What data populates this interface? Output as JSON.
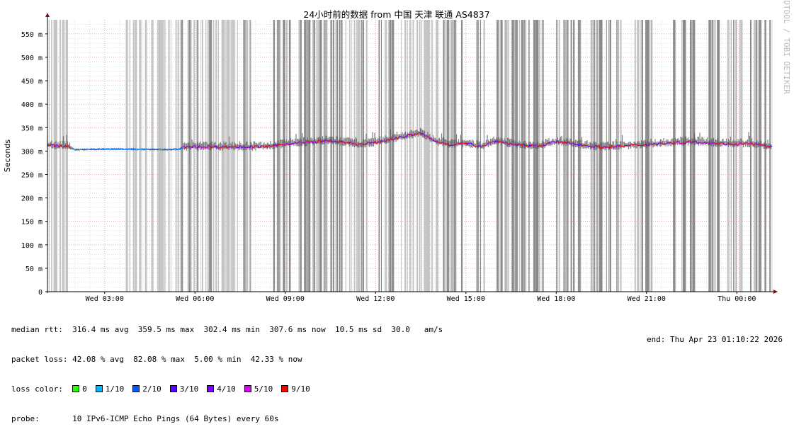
{
  "chart_data": {
    "type": "line",
    "title": "24小时前的数据 from 中国 天津 联通 AS4837",
    "ylabel": "Seconds",
    "watermark": "RRDTOOL / TOBI OETIKER",
    "ylim": [
      0,
      580
    ],
    "y_ticks": [
      {
        "value": 0,
        "label": "0"
      },
      {
        "value": 50,
        "label": "50 m"
      },
      {
        "value": 100,
        "label": "100 m"
      },
      {
        "value": 150,
        "label": "150 m"
      },
      {
        "value": 200,
        "label": "200 m"
      },
      {
        "value": 250,
        "label": "250 m"
      },
      {
        "value": 300,
        "label": "300 m"
      },
      {
        "value": 350,
        "label": "350 m"
      },
      {
        "value": 400,
        "label": "400 m"
      },
      {
        "value": 450,
        "label": "450 m"
      },
      {
        "value": 500,
        "label": "500 m"
      },
      {
        "value": 550,
        "label": "550 m"
      }
    ],
    "xlim_hours": [
      1.1,
      25.17
    ],
    "x_ticks": [
      {
        "hour": 3,
        "label": "Wed 03:00"
      },
      {
        "hour": 6,
        "label": "Wed 06:00"
      },
      {
        "hour": 9,
        "label": "Wed 09:00"
      },
      {
        "hour": 12,
        "label": "Wed 12:00"
      },
      {
        "hour": 15,
        "label": "Wed 15:00"
      },
      {
        "hour": 18,
        "label": "Wed 18:00"
      },
      {
        "hour": 21,
        "label": "Wed 21:00"
      },
      {
        "hour": 24,
        "label": "Thu 00:00"
      }
    ],
    "median_rtt_series": [
      {
        "hour": 1.1,
        "ms": 312
      },
      {
        "hour": 1.8,
        "ms": 310
      },
      {
        "hour": 2.0,
        "ms": 303
      },
      {
        "hour": 3.0,
        "ms": 304
      },
      {
        "hour": 4.0,
        "ms": 304
      },
      {
        "hour": 5.0,
        "ms": 303
      },
      {
        "hour": 5.5,
        "ms": 304
      },
      {
        "hour": 5.6,
        "ms": 308
      },
      {
        "hour": 6.0,
        "ms": 309
      },
      {
        "hour": 7.0,
        "ms": 309
      },
      {
        "hour": 8.0,
        "ms": 309
      },
      {
        "hour": 8.5,
        "ms": 310
      },
      {
        "hour": 9.0,
        "ms": 315
      },
      {
        "hour": 10.0,
        "ms": 320
      },
      {
        "hour": 10.5,
        "ms": 322
      },
      {
        "hour": 11.0,
        "ms": 318
      },
      {
        "hour": 11.5,
        "ms": 314
      },
      {
        "hour": 12.0,
        "ms": 318
      },
      {
        "hour": 12.5,
        "ms": 325
      },
      {
        "hour": 13.0,
        "ms": 332
      },
      {
        "hour": 13.5,
        "ms": 338
      },
      {
        "hour": 14.0,
        "ms": 320
      },
      {
        "hour": 14.5,
        "ms": 314
      },
      {
        "hour": 15.0,
        "ms": 316
      },
      {
        "hour": 15.5,
        "ms": 310
      },
      {
        "hour": 16.0,
        "ms": 322
      },
      {
        "hour": 16.5,
        "ms": 315
      },
      {
        "hour": 17.0,
        "ms": 311
      },
      {
        "hour": 17.5,
        "ms": 312
      },
      {
        "hour": 18.0,
        "ms": 320
      },
      {
        "hour": 18.5,
        "ms": 316
      },
      {
        "hour": 19.0,
        "ms": 312
      },
      {
        "hour": 19.5,
        "ms": 308
      },
      {
        "hour": 20.0,
        "ms": 310
      },
      {
        "hour": 20.5,
        "ms": 312
      },
      {
        "hour": 21.0,
        "ms": 314
      },
      {
        "hour": 21.5,
        "ms": 316
      },
      {
        "hour": 22.0,
        "ms": 318
      },
      {
        "hour": 22.5,
        "ms": 320
      },
      {
        "hour": 23.0,
        "ms": 318
      },
      {
        "hour": 23.5,
        "ms": 316
      },
      {
        "hour": 24.0,
        "ms": 315
      },
      {
        "hour": 24.5,
        "ms": 316
      },
      {
        "hour": 25.17,
        "ms": 308
      }
    ],
    "loss_bands": [
      {
        "from": 1.1,
        "to": 1.75,
        "shade": "light"
      },
      {
        "from": 3.7,
        "to": 4.65,
        "shade": "light"
      },
      {
        "from": 4.75,
        "to": 5.55,
        "shade": "light"
      },
      {
        "from": 5.55,
        "to": 6.6,
        "shade": "mixed"
      },
      {
        "from": 6.6,
        "to": 7.4,
        "shade": "light"
      },
      {
        "from": 7.6,
        "to": 8.0,
        "shade": "dark"
      },
      {
        "from": 8.6,
        "to": 9.5,
        "shade": "dark"
      },
      {
        "from": 9.5,
        "to": 10.9,
        "shade": "dark"
      },
      {
        "from": 11.0,
        "to": 11.8,
        "shade": "mixed"
      },
      {
        "from": 12.1,
        "to": 12.6,
        "shade": "dark"
      },
      {
        "from": 12.6,
        "to": 13.9,
        "shade": "light"
      },
      {
        "from": 14.0,
        "to": 15.1,
        "shade": "dark"
      },
      {
        "from": 15.35,
        "to": 15.6,
        "shade": "dark"
      },
      {
        "from": 16.0,
        "to": 17.6,
        "shade": "dark"
      },
      {
        "from": 18.0,
        "to": 18.8,
        "shade": "dark"
      },
      {
        "from": 19.1,
        "to": 19.8,
        "shade": "dark"
      },
      {
        "from": 20.0,
        "to": 20.2,
        "shade": "dark"
      },
      {
        "from": 20.6,
        "to": 21.3,
        "shade": "dark"
      },
      {
        "from": 21.6,
        "to": 22.7,
        "shade": "dark"
      },
      {
        "from": 22.9,
        "to": 23.4,
        "shade": "dark"
      },
      {
        "from": 23.6,
        "to": 25.17,
        "shade": "dark"
      }
    ],
    "colors": {
      "grid_major": "#e07070",
      "grid_minor": "#c8c8c8",
      "loss_light": "#c4c4c4",
      "loss_dark": "#8a8a8a",
      "loss_0": "#26ff00",
      "loss_1": "#00b8ff",
      "loss_2": "#0059ff",
      "loss_3": "#5e00ff",
      "loss_4": "#7e00ff",
      "loss_5": "#dd00ff",
      "loss_9": "#ff0000"
    }
  },
  "stats": {
    "median_rtt": "median rtt:  316.4 ms avg  359.5 ms max  302.4 ms min  307.6 ms now  10.5 ms sd  30.0   am/s",
    "packet_loss": "packet loss: 42.08 % avg  82.08 % max  5.00 % min  42.33 % now",
    "loss_color_label": "loss color:",
    "loss_colors": [
      {
        "label": "0",
        "color": "#26ff00"
      },
      {
        "label": "1/10",
        "color": "#00b8ff"
      },
      {
        "label": "2/10",
        "color": "#0059ff"
      },
      {
        "label": "3/10",
        "color": "#5e00ff"
      },
      {
        "label": "4/10",
        "color": "#7e00ff"
      },
      {
        "label": "5/10",
        "color": "#dd00ff"
      },
      {
        "label": "9/10",
        "color": "#ff0000"
      }
    ],
    "probe": "probe:       10 IPv6-ICMP Echo Pings (64 Bytes) every 60s",
    "end": "end: Thu Apr 23 01:10:22 2026"
  }
}
